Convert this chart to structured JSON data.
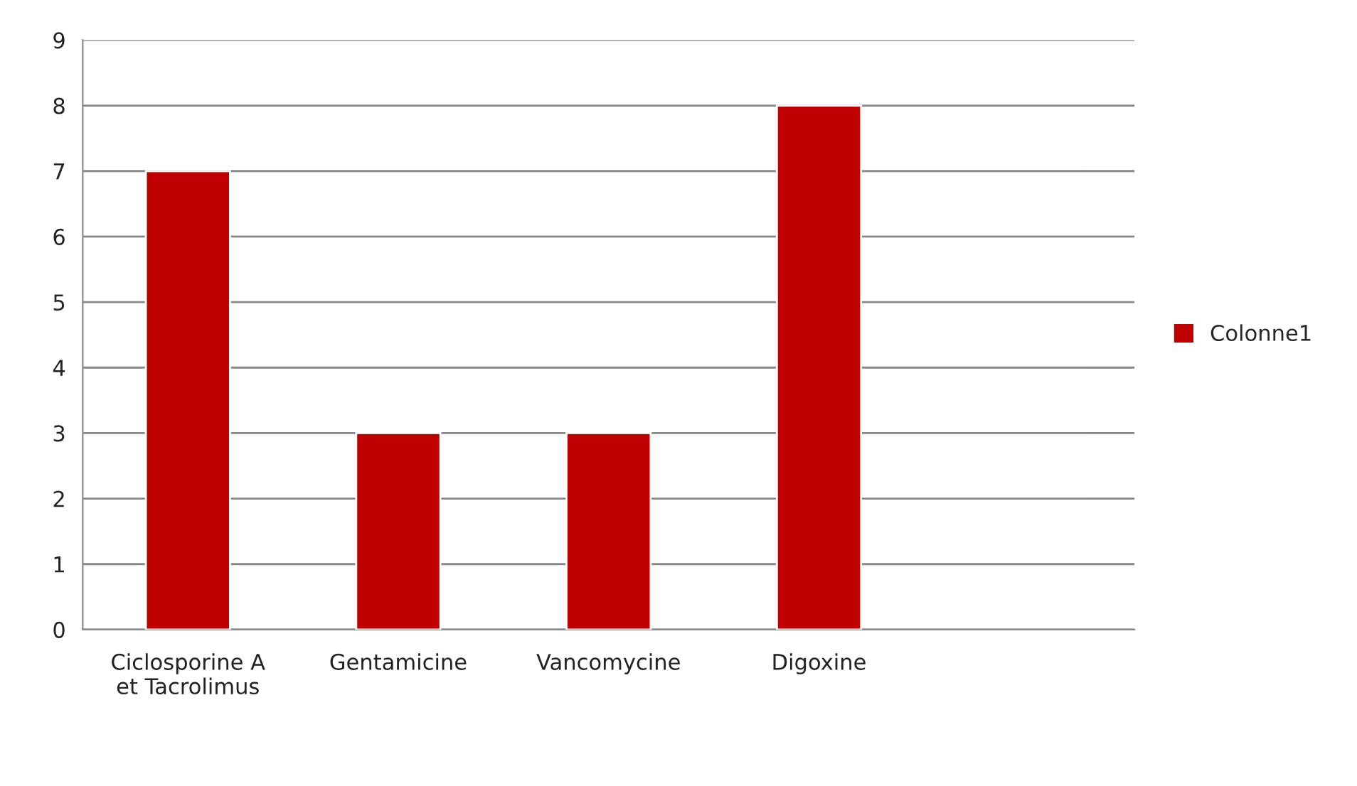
{
  "chart_data": {
    "type": "bar",
    "categories": [
      "Ciclosporine A et Tacrolimus",
      "Gentamicine",
      "Vancomycine",
      "Digoxine",
      null
    ],
    "series": [
      {
        "name": "Colonne1",
        "color": "#c00000",
        "values": [
          7,
          3,
          3,
          8,
          null
        ]
      }
    ],
    "ylim": [
      0,
      9
    ],
    "yticks": [
      0,
      1,
      2,
      3,
      4,
      5,
      6,
      7,
      8,
      9
    ],
    "grid": "y",
    "legend": "right"
  }
}
